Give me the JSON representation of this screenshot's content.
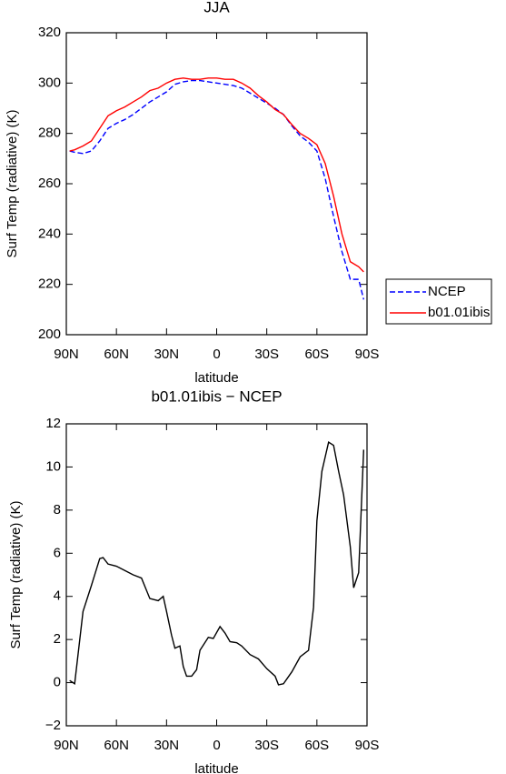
{
  "chart_data": [
    {
      "type": "line",
      "title": "JJA",
      "xlabel": "latitude",
      "ylabel": "Surf Temp (radiative) (K)",
      "x": [
        88,
        85,
        80,
        75,
        70,
        65,
        60,
        55,
        50,
        45,
        40,
        35,
        30,
        25,
        20,
        15,
        10,
        5,
        0,
        -5,
        -10,
        -15,
        -20,
        -25,
        -30,
        -35,
        -40,
        -45,
        -50,
        -55,
        -60,
        -65,
        -70,
        -75,
        -80,
        -85,
        -88
      ],
      "series": [
        {
          "name": "NCEP",
          "color": "#0000ff",
          "dashed": true,
          "values": [
            273,
            272.5,
            272,
            273,
            277,
            282,
            284,
            285.5,
            287.5,
            290,
            292.5,
            294.5,
            296.5,
            299.5,
            300.5,
            301,
            301,
            300.5,
            300,
            299.5,
            299,
            298,
            296,
            294,
            292,
            290,
            287.5,
            283,
            279,
            276.5,
            273,
            262,
            247,
            233,
            222,
            222,
            214
          ]
        },
        {
          "name": "b01.01ibis",
          "color": "#ff0000",
          "dashed": false,
          "values": [
            273,
            273.5,
            275,
            277,
            282,
            287,
            289,
            290.5,
            292.5,
            294.5,
            297,
            298,
            300,
            301.5,
            302,
            301.5,
            301.5,
            302,
            302,
            301.5,
            301.5,
            300,
            298,
            295,
            292.5,
            289.5,
            287.5,
            283.5,
            280,
            278,
            275.5,
            268,
            255,
            240,
            229,
            227,
            225
          ]
        }
      ],
      "xlim": [
        90,
        -90
      ],
      "xticks": [
        {
          "value": 90,
          "label": "90N"
        },
        {
          "value": 60,
          "label": "60N"
        },
        {
          "value": 30,
          "label": "30N"
        },
        0,
        {
          "value": -30,
          "label": "30S"
        },
        {
          "value": -60,
          "label": "60S"
        },
        {
          "value": -90,
          "label": "90S"
        }
      ],
      "ylim": [
        200,
        320
      ],
      "yticks": [
        200,
        220,
        240,
        260,
        280,
        300,
        320
      ],
      "legend": "right"
    },
    {
      "type": "line",
      "title": "b01.01ibis − NCEP",
      "xlabel": "latitude",
      "ylabel": "Surf Temp (radiative) (K)",
      "x": [
        88,
        85,
        80,
        75,
        70,
        68,
        65,
        60,
        55,
        50,
        45,
        40,
        35,
        32,
        30,
        27,
        25,
        22,
        20,
        18,
        15,
        12,
        10,
        5,
        2,
        -2,
        -5,
        -8,
        -12,
        -15,
        -20,
        -25,
        -30,
        -35,
        -37,
        -40,
        -45,
        -50,
        -55,
        -58,
        -60,
        -63,
        -67,
        -70,
        -73,
        -76,
        -80,
        -82,
        -85,
        -88
      ],
      "series": [
        {
          "name": null,
          "color": "#000000",
          "dashed": false,
          "values": [
            0.1,
            -0.05,
            3.3,
            4.5,
            5.75,
            5.8,
            5.5,
            5.4,
            5.2,
            5.0,
            4.85,
            3.9,
            3.8,
            4.0,
            3.3,
            2.2,
            1.6,
            1.7,
            0.75,
            0.3,
            0.3,
            0.6,
            1.5,
            2.1,
            2.05,
            2.6,
            2.3,
            1.9,
            1.85,
            1.7,
            1.3,
            1.1,
            0.65,
            0.3,
            -0.1,
            -0.05,
            0.5,
            1.2,
            1.5,
            3.5,
            7.5,
            9.8,
            11.15,
            11.0,
            9.8,
            8.7,
            6.3,
            4.4,
            5.1,
            10.8
          ]
        }
      ],
      "xlim": [
        90,
        -90
      ],
      "xticks": [
        {
          "value": 90,
          "label": "90N"
        },
        {
          "value": 60,
          "label": "60N"
        },
        {
          "value": 30,
          "label": "30N"
        },
        0,
        {
          "value": -30,
          "label": "30S"
        },
        {
          "value": -60,
          "label": "60S"
        },
        {
          "value": -90,
          "label": "90S"
        }
      ],
      "ylim": [
        -2,
        12
      ],
      "yticks": [
        {
          "value": -2,
          "label": "−2"
        },
        0,
        2,
        4,
        6,
        8,
        10,
        12
      ]
    }
  ]
}
